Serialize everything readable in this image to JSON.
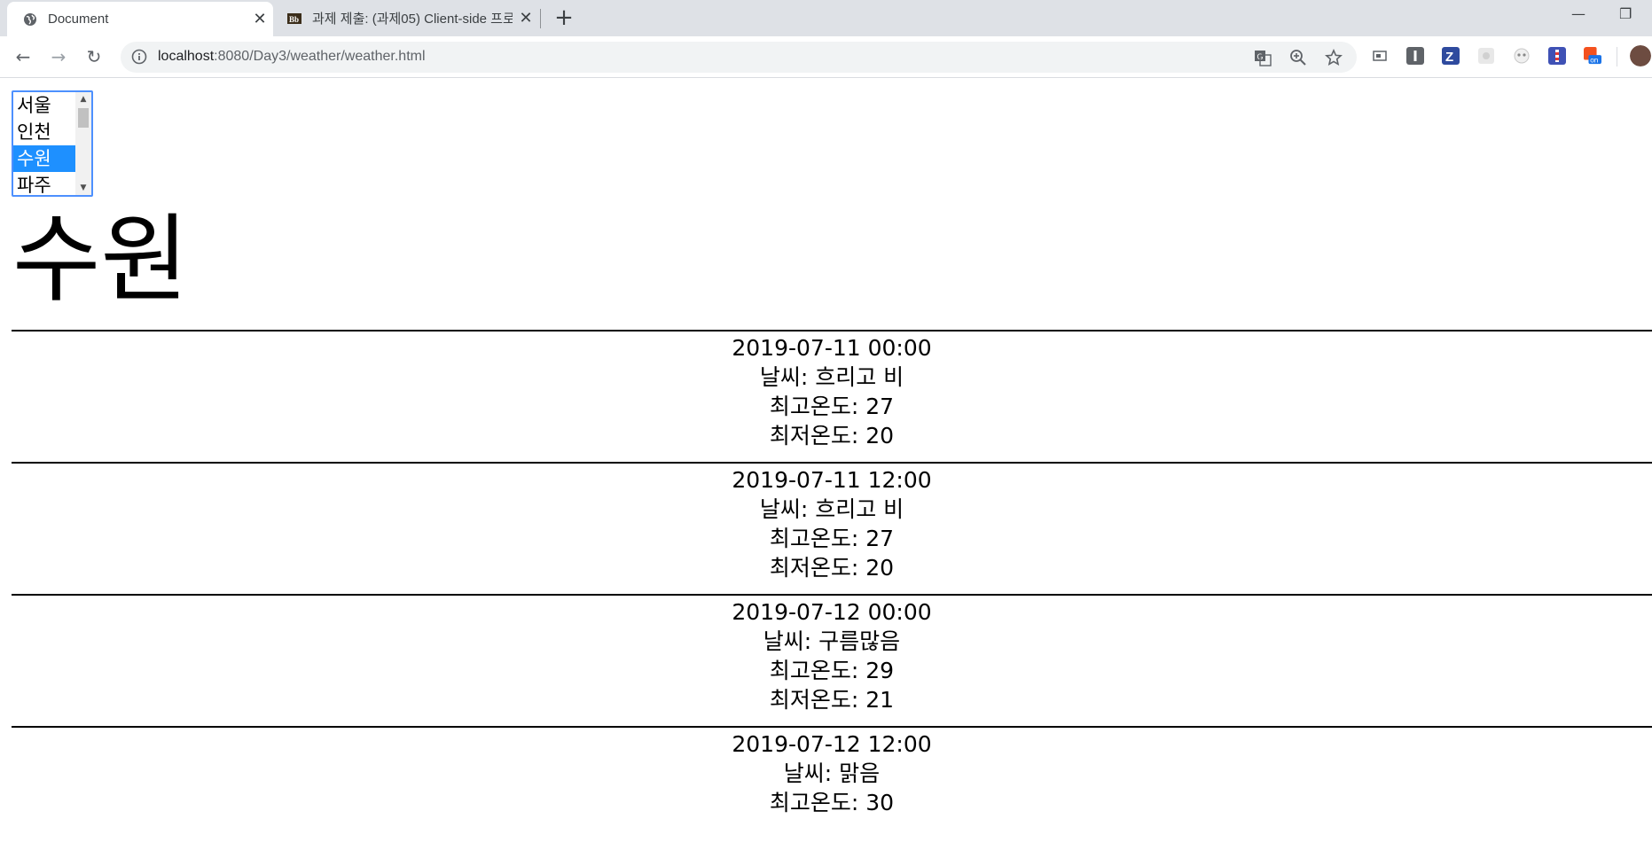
{
  "browser": {
    "tabs": [
      {
        "title": "Document",
        "active": true
      },
      {
        "title": "과제 제출: (과제05) Client-side 프로그래밍",
        "active": false
      }
    ],
    "url_host": "localhost",
    "url_rest": ":8080/Day3/weather/weather.html",
    "icons": [
      "back-arrow-icon",
      "forward-arrow-icon",
      "reload-icon",
      "info-icon",
      "translate-icon",
      "zoom-icon",
      "star-icon"
    ]
  },
  "page": {
    "city_options": [
      "서울",
      "인천",
      "수원",
      "파주"
    ],
    "selected_city": "수원",
    "heading": "수원",
    "labels": {
      "weather": "날씨: ",
      "high": "최고온도: ",
      "low": "최저온도: "
    },
    "forecast": [
      {
        "datetime": "2019-07-11 00:00",
        "weather": "흐리고 비",
        "high": "27",
        "low": "20"
      },
      {
        "datetime": "2019-07-11 12:00",
        "weather": "흐리고 비",
        "high": "27",
        "low": "20"
      },
      {
        "datetime": "2019-07-12 00:00",
        "weather": "구름많음",
        "high": "29",
        "low": "21"
      },
      {
        "datetime": "2019-07-12 12:00",
        "weather": "맑음",
        "high": "30",
        "low": ""
      }
    ]
  },
  "colors": {
    "selection": "#1e90ff",
    "focus_border": "#4d90fe",
    "tabstrip": "#dee1e6"
  }
}
